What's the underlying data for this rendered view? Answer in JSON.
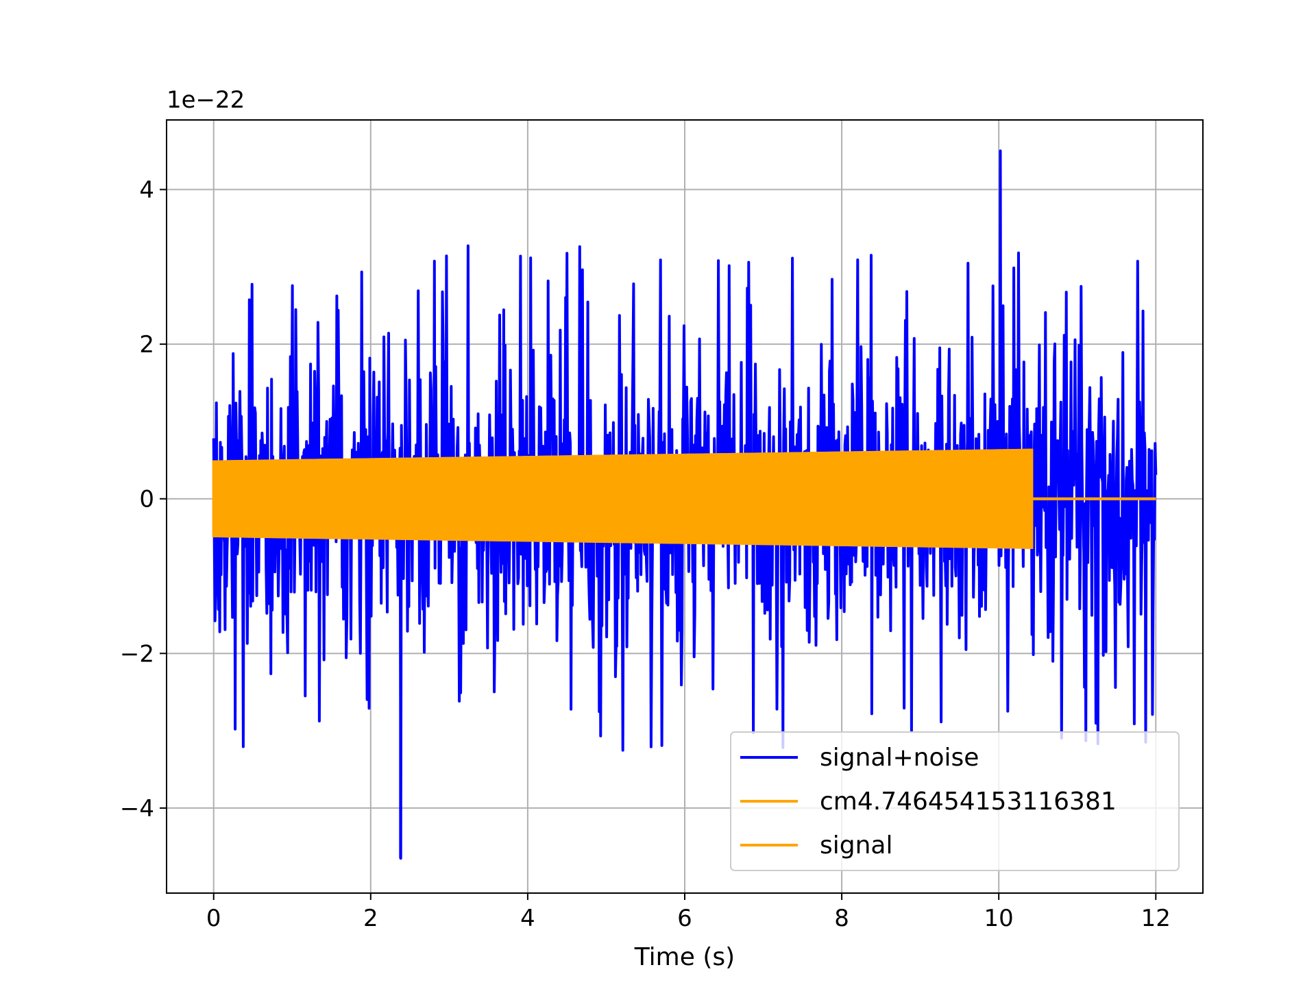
{
  "chart_data": {
    "type": "line",
    "title": "",
    "xlabel": "Time (s)",
    "ylabel": "",
    "y_offset_label": "1e−22",
    "xlim": [
      -0.6,
      12.6
    ],
    "ylim": [
      -5.1,
      4.9
    ],
    "xticks": [
      0,
      2,
      4,
      6,
      8,
      10,
      12
    ],
    "xtick_labels": [
      "0",
      "2",
      "4",
      "6",
      "8",
      "10",
      "12"
    ],
    "yticks": [
      -4,
      -2,
      0,
      2,
      4
    ],
    "ytick_labels": [
      "−4",
      "−2",
      "0",
      "2",
      "4"
    ],
    "grid": true,
    "legend_position": "lower right",
    "series": [
      {
        "name": "signal+noise",
        "color": "#0000ff",
        "x_range": [
          0,
          12
        ],
        "typical_envelope": [
          -2.0,
          2.0
        ],
        "max_peak": {
          "x": 10.02,
          "y": 4.5
        },
        "min_peak": {
          "x": 2.38,
          "y": -4.65
        }
      },
      {
        "name": "cm4.746454153116381",
        "color": "#ffa500",
        "segments": [
          {
            "x_start": 0,
            "x_end": 10.42,
            "amp_start": 0.48,
            "amp_end": 0.63
          },
          {
            "x_start": 10.42,
            "x_end": 12,
            "amp_start": 0,
            "amp_end": 0
          }
        ]
      },
      {
        "name": "signal",
        "color": "#ffa500",
        "segments": [
          {
            "x_start": 0,
            "x_end": 10.42,
            "amp_start": 0.48,
            "amp_end": 0.63
          },
          {
            "x_start": 10.42,
            "x_end": 12,
            "amp_start": 0,
            "amp_end": 0
          }
        ]
      }
    ]
  }
}
